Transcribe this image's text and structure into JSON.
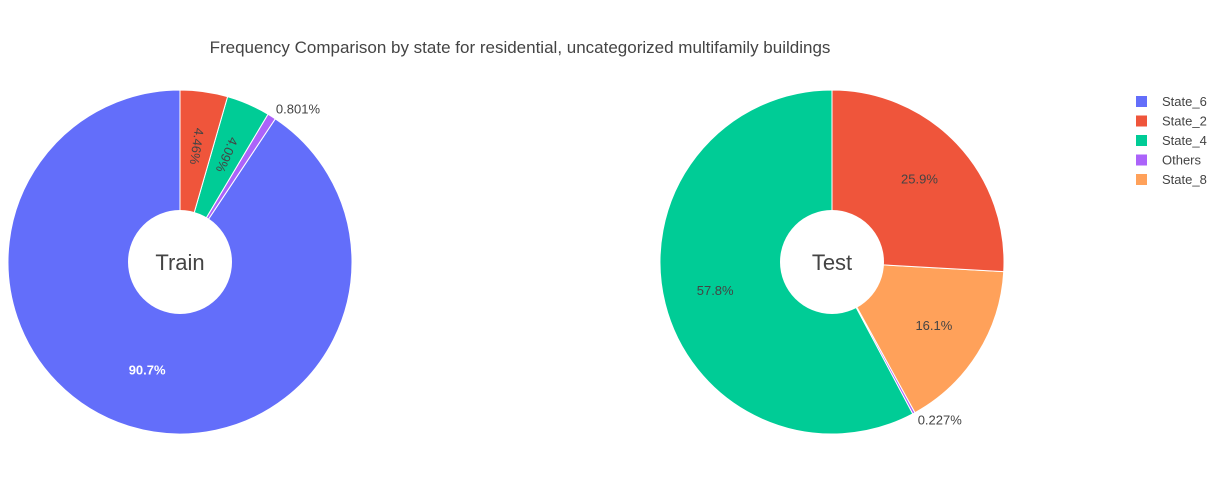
{
  "chart_data": {
    "type": "pie",
    "title": "Frequency Comparison by state for residential, uncategorized multifamily buildings",
    "legend_position": "top-right",
    "legend": [
      {
        "label": "State_6",
        "color": "#636efa"
      },
      {
        "label": "State_2",
        "color": "#ef553b"
      },
      {
        "label": "State_4",
        "color": "#00cc96"
      },
      {
        "label": "Others",
        "color": "#ab63fa"
      },
      {
        "label": "State_8",
        "color": "#ffa15a"
      }
    ],
    "pies": [
      {
        "name": "Train",
        "hole_label": "Train",
        "slices": [
          {
            "label": "State_6",
            "value": 90.7,
            "text": "90.7%",
            "color": "#636efa"
          },
          {
            "label": "Others",
            "value": 0.801,
            "text": "0.801%",
            "color": "#ab63fa"
          },
          {
            "label": "State_4",
            "value": 4.09,
            "text": "4.09%",
            "color": "#00cc96"
          },
          {
            "label": "State_2",
            "value": 4.46,
            "text": "4.46%",
            "color": "#ef553b"
          }
        ]
      },
      {
        "name": "Test",
        "hole_label": "Test",
        "slices": [
          {
            "label": "State_4",
            "value": 57.8,
            "text": "57.8%",
            "color": "#00cc96"
          },
          {
            "label": "Others",
            "value": 0.227,
            "text": "0.227%",
            "color": "#ab63fa"
          },
          {
            "label": "State_8",
            "value": 16.1,
            "text": "16.1%",
            "color": "#ffa15a"
          },
          {
            "label": "State_2",
            "value": 25.9,
            "text": "25.9%",
            "color": "#ef553b"
          }
        ]
      }
    ]
  }
}
